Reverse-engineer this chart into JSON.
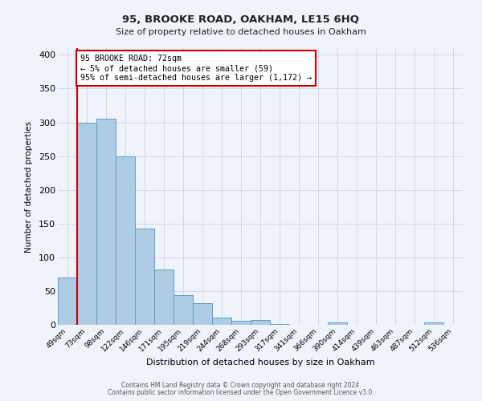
{
  "title": "95, BROOKE ROAD, OAKHAM, LE15 6HQ",
  "subtitle": "Size of property relative to detached houses in Oakham",
  "xlabel": "Distribution of detached houses by size in Oakham",
  "ylabel": "Number of detached properties",
  "bar_labels": [
    "49sqm",
    "73sqm",
    "98sqm",
    "122sqm",
    "146sqm",
    "171sqm",
    "195sqm",
    "219sqm",
    "244sqm",
    "268sqm",
    "293sqm",
    "317sqm",
    "341sqm",
    "366sqm",
    "390sqm",
    "414sqm",
    "439sqm",
    "463sqm",
    "487sqm",
    "512sqm",
    "536sqm"
  ],
  "bar_values": [
    70,
    300,
    305,
    250,
    143,
    82,
    44,
    32,
    11,
    6,
    7,
    1,
    0,
    0,
    3,
    0,
    0,
    0,
    0,
    4,
    0
  ],
  "bar_color": "#aecce4",
  "bar_edge_color": "#5b9ec9",
  "vline_x": 1,
  "vline_color": "#cc0000",
  "annotation_text": "95 BROOKE ROAD: 72sqm\n← 5% of detached houses are smaller (59)\n95% of semi-detached houses are larger (1,172) →",
  "annotation_box_color": "#ffffff",
  "annotation_box_edge": "#cc0000",
  "grid_color": "#d0d8e8",
  "background_color": "#f0f4fa",
  "ylim": [
    0,
    410
  ],
  "yticks": [
    0,
    50,
    100,
    150,
    200,
    250,
    300,
    350,
    400
  ],
  "footer1": "Contains HM Land Registry data © Crown copyright and database right 2024.",
  "footer2": "Contains public sector information licensed under the Open Government Licence v3.0."
}
